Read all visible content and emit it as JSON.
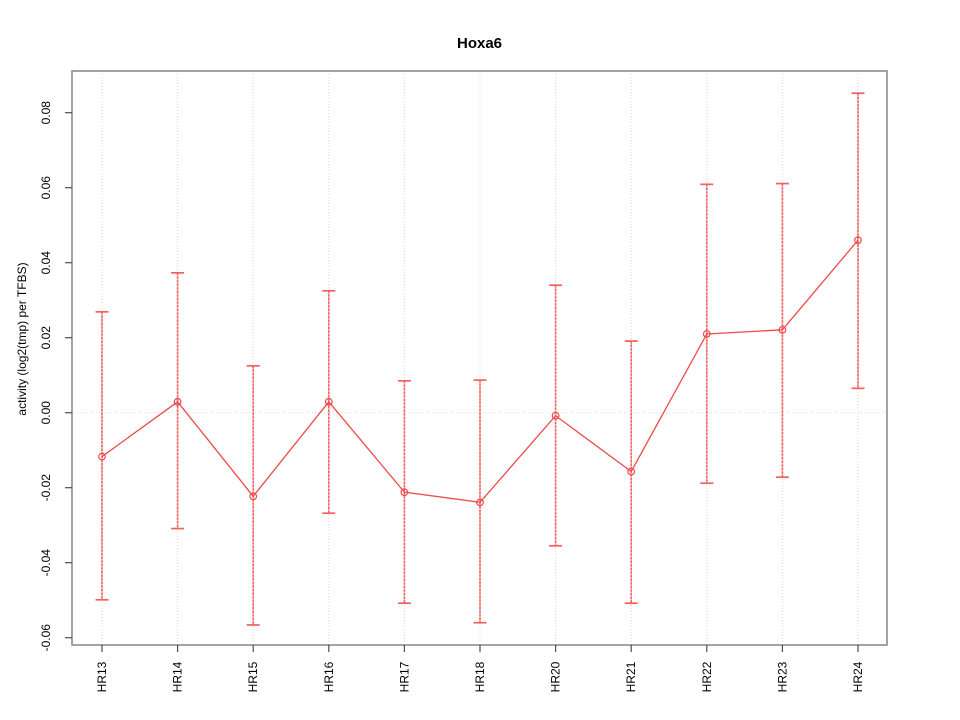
{
  "chart_data": {
    "type": "line",
    "title": "Hoxa6",
    "xlabel": "",
    "ylabel": "activity (log2(tmp) per TFBS)",
    "legend_position": "none",
    "grid": "dotted vertical line at each category; dotted horizontal line at y=0",
    "categories": [
      "HR13",
      "HR14",
      "HR15",
      "HR16",
      "HR17",
      "HR18",
      "HR20",
      "HR21",
      "HR22",
      "HR23",
      "HR24"
    ],
    "series": [
      {
        "name": "activity",
        "values": [
          -0.0117,
          0.0029,
          -0.0223,
          0.0029,
          -0.0212,
          -0.0239,
          -0.0008,
          -0.0157,
          0.021,
          0.0221,
          0.046
        ]
      }
    ],
    "error_low": [
      -0.0499,
      -0.0309,
      -0.0566,
      -0.0268,
      -0.0508,
      -0.056,
      -0.0355,
      -0.0508,
      -0.0188,
      -0.0172,
      0.0065
    ],
    "error_high": [
      0.0269,
      0.0373,
      0.0125,
      0.0325,
      0.0085,
      0.0087,
      0.034,
      0.0191,
      0.0609,
      0.0611,
      0.0852
    ],
    "ytick_values": [
      -0.06,
      -0.04,
      -0.02,
      0.0,
      0.02,
      0.04,
      0.06,
      0.08
    ],
    "ytick_labels": [
      "-0.06",
      "-0.04",
      "-0.02",
      "0.00",
      "0.02",
      "0.04",
      "0.06",
      "0.08"
    ],
    "ylim": [
      -0.062,
      0.091
    ],
    "marker": "open-circle",
    "colors": {
      "line": "#f04a4a",
      "error": "#f26060",
      "error_light": "#fab4b4",
      "grid": "#d9d9d9",
      "box": "#8c8c8c",
      "tick": "#4d4d4d",
      "text": "#000000",
      "background": "#ffffff"
    }
  }
}
